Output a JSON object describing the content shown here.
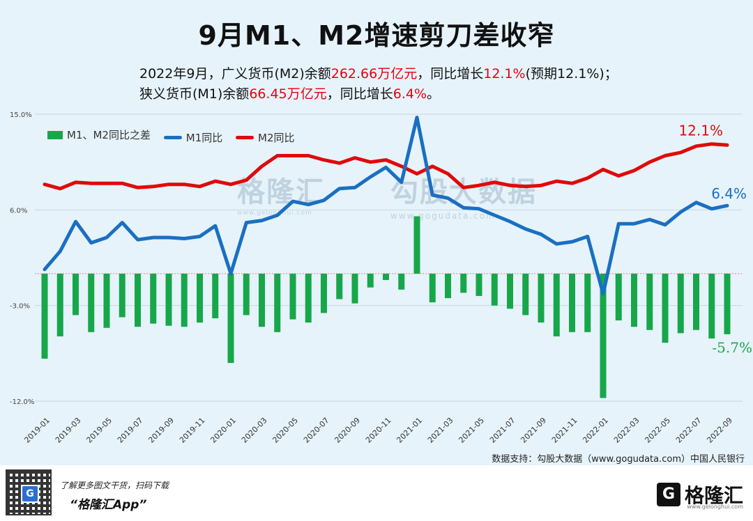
{
  "title": "9月M1、M2增速剪刀差收窄",
  "subtitle": {
    "line1": {
      "a": "2022年9月，广义货币(M2)余额",
      "b": "262.66万亿元",
      "c": "，同比增长",
      "d": "12.1%",
      "e": "(预期12.1%)；"
    },
    "line2": {
      "a": "狭义货币(M1)余额",
      "b": "66.45万亿元",
      "c": "，同比增长",
      "d": "6.4%",
      "e": "。"
    }
  },
  "watermark": {
    "left": "格隆汇",
    "left_small": "www.gelonghui.com",
    "right": "勾股大数据",
    "right_small": "www.gogudata.com"
  },
  "source": "数据支持：勾股大数据（www.gogudata.com）中国人民银行",
  "footer": {
    "promo1": "了解更多图文干货，扫码下载",
    "promo2": "“格隆汇App”",
    "brand": "格隆汇",
    "brand_domain": "www.gelonghui.com",
    "logo_letter": "G"
  },
  "colors": {
    "bar": "#17a74a",
    "m1": "#1a6fc1",
    "m2": "#e00a0a",
    "red_text": "#e60012",
    "green_text": "#17a74a"
  },
  "chart_data": {
    "type": "bar+line",
    "title": "9月M1、M2增速剪刀差收窄",
    "ylim": [
      -12.0,
      15.0
    ],
    "yticks": [
      "15.0%",
      "6.0%",
      "-3.0%",
      "-12.0%"
    ],
    "ytick_values": [
      15.0,
      6.0,
      -3.0,
      -12.0
    ],
    "categories": [
      "2019-01",
      "2019-02",
      "2019-03",
      "2019-04",
      "2019-05",
      "2019-06",
      "2019-07",
      "2019-08",
      "2019-09",
      "2019-10",
      "2019-11",
      "2019-12",
      "2020-01",
      "2020-02",
      "2020-03",
      "2020-04",
      "2020-05",
      "2020-06",
      "2020-07",
      "2020-08",
      "2020-09",
      "2020-10",
      "2020-11",
      "2020-12",
      "2021-01",
      "2021-02",
      "2021-03",
      "2021-04",
      "2021-05",
      "2021-06",
      "2021-07",
      "2021-08",
      "2021-09",
      "2021-10",
      "2021-11",
      "2021-12",
      "2022-01",
      "2022-02",
      "2022-03",
      "2022-04",
      "2022-05",
      "2022-06",
      "2022-07",
      "2022-08",
      "2022-09"
    ],
    "xtick_labels": [
      "2019-01",
      "2019-03",
      "2019-05",
      "2019-07",
      "2019-09",
      "2019-11",
      "2020-01",
      "2020-03",
      "2020-05",
      "2020-07",
      "2020-09",
      "2020-11",
      "2021-01",
      "2021-03",
      "2021-05",
      "2021-07",
      "2021-09",
      "2021-11",
      "2022-01",
      "2022-03",
      "2022-05",
      "2022-07",
      "2022-09"
    ],
    "series": [
      {
        "name": "M1、M2同比之差",
        "type": "bar",
        "values": [
          -8.0,
          -5.9,
          -3.9,
          -5.5,
          -5.1,
          -4.1,
          -5.0,
          -4.7,
          -4.9,
          -5.0,
          -4.6,
          -4.2,
          -8.4,
          -3.9,
          -5.0,
          -5.5,
          -4.3,
          -4.6,
          -3.7,
          -2.4,
          -2.8,
          -1.3,
          -0.6,
          -1.5,
          5.4,
          -2.7,
          -2.3,
          -1.8,
          -2.1,
          -3.0,
          -3.3,
          -3.9,
          -4.6,
          -5.9,
          -5.5,
          -5.5,
          -11.7,
          -4.4,
          -5.0,
          -5.3,
          -6.5,
          -5.6,
          -5.3,
          -6.1,
          -5.7
        ]
      },
      {
        "name": "M1同比",
        "type": "line",
        "values": [
          0.4,
          2.1,
          4.9,
          2.9,
          3.4,
          4.8,
          3.2,
          3.4,
          3.4,
          3.3,
          3.5,
          4.5,
          0.0,
          4.8,
          5.0,
          5.5,
          6.8,
          6.5,
          6.9,
          8.0,
          8.1,
          9.1,
          10.0,
          8.6,
          14.7,
          7.4,
          7.1,
          6.2,
          6.1,
          5.5,
          4.9,
          4.2,
          3.7,
          2.8,
          3.0,
          3.5,
          -1.9,
          4.7,
          4.7,
          5.1,
          4.6,
          5.8,
          6.7,
          6.1,
          6.4
        ]
      },
      {
        "name": "M2同比",
        "type": "line",
        "values": [
          8.4,
          8.0,
          8.6,
          8.5,
          8.5,
          8.5,
          8.1,
          8.2,
          8.4,
          8.4,
          8.2,
          8.7,
          8.4,
          8.8,
          10.1,
          11.1,
          11.1,
          11.1,
          10.7,
          10.4,
          10.9,
          10.5,
          10.7,
          10.1,
          9.4,
          10.1,
          9.4,
          8.1,
          8.3,
          8.6,
          8.3,
          8.2,
          8.3,
          8.7,
          8.5,
          9.0,
          9.8,
          9.2,
          9.7,
          10.5,
          11.1,
          11.4,
          12.0,
          12.2,
          12.1
        ]
      }
    ],
    "legend": [
      "M1、M2同比之差",
      "M1同比",
      "M2同比"
    ],
    "legend_position": "top-left",
    "annotations": {
      "m2_last": "12.1%",
      "m1_last": "6.4%",
      "bar_last": "-5.7%"
    }
  }
}
